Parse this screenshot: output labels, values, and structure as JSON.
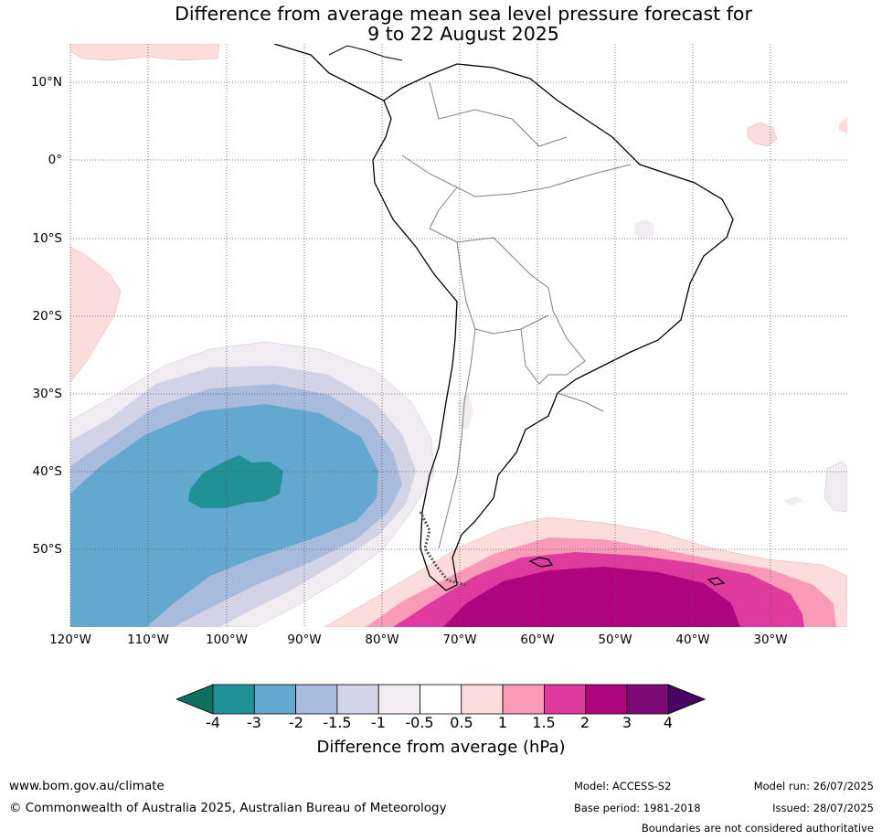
{
  "title_line1": "Difference from average mean sea level pressure forecast for",
  "title_line2": "9 to 22 August 2025",
  "lat_labels": [
    "10°N",
    "0°",
    "10°S",
    "20°S",
    "30°S",
    "40°S",
    "50°S"
  ],
  "lon_labels": [
    "120°W",
    "110°W",
    "100°W",
    "90°W",
    "80°W",
    "70°W",
    "60°W",
    "50°W",
    "40°W",
    "30°W"
  ],
  "colorbar": {
    "ticks": [
      "-4",
      "-3",
      "-2",
      "-1.5",
      "-1",
      "-0.5",
      "0.5",
      "1",
      "1.5",
      "2",
      "3",
      "4"
    ],
    "colors": [
      "#0e7060",
      "#1f9197",
      "#62a8cf",
      "#a9bbdc",
      "#d3d3e7",
      "#f0ecf2",
      "#ffffff",
      "#fcdddc",
      "#f89ab8",
      "#df3a9e",
      "#b0047f",
      "#7e0a78",
      "#4b0063"
    ],
    "title": "Difference from average (hPa)"
  },
  "footer": {
    "website": "www.bom.gov.au/climate",
    "copyright": "© Commonwealth of Australia 2025, Australian Bureau of Meteorology",
    "model": "Model: ACCESS-S2",
    "base_period": "Base period: 1981-2018",
    "model_run": "Model run: 26/07/2025",
    "issued": "Issued: 28/07/2025",
    "disclaimer": "Boundaries are not considered authoritative"
  }
}
